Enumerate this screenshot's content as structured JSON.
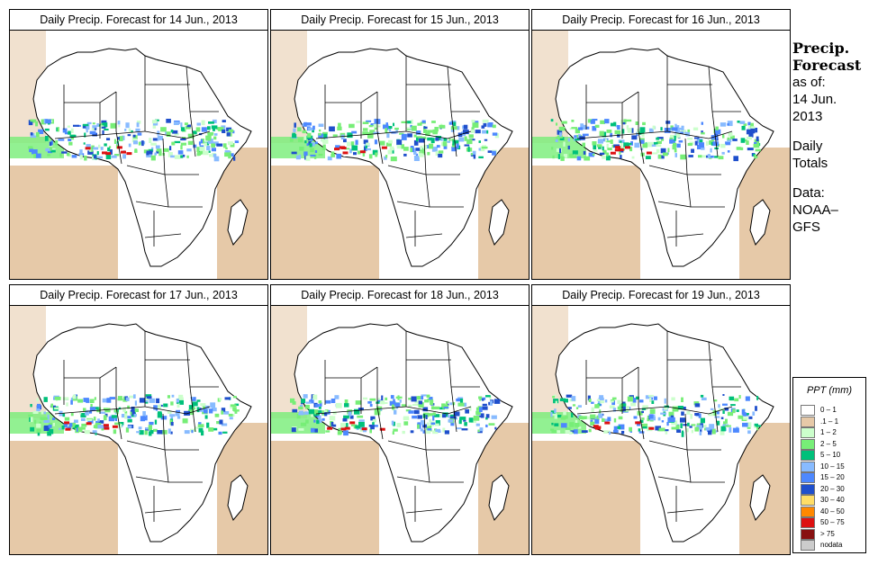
{
  "panels": [
    {
      "title": "Daily Precip. Forecast for  14 Jun., 2013"
    },
    {
      "title": "Daily Precip. Forecast for  15 Jun., 2013"
    },
    {
      "title": "Daily Precip. Forecast for  16 Jun., 2013"
    },
    {
      "title": "Daily Precip. Forecast for  17 Jun., 2013"
    },
    {
      "title": "Daily Precip. Forecast for  18 Jun., 2013"
    },
    {
      "title": "Daily Precip. Forecast for  19 Jun., 2013"
    }
  ],
  "sidebar": {
    "heading_line1": "Precip.",
    "heading_line2": "Forecast",
    "asof_label": "as of:",
    "asof_date1": "14 Jun.",
    "asof_date2": "2013",
    "totals1": "Daily",
    "totals2": "Totals",
    "data1": "Data:",
    "data2": "NOAA–",
    "data3": "GFS"
  },
  "legend": {
    "title": "PPT (mm)",
    "items": [
      {
        "label": "0 – 1",
        "color": "#ffffff"
      },
      {
        "label": ".1 – 1",
        "color": "#e6c9a8"
      },
      {
        "label": "1 – 2",
        "color": "#ccffcc"
      },
      {
        "label": "2 – 5",
        "color": "#77ee77"
      },
      {
        "label": "5 – 10",
        "color": "#00c07a"
      },
      {
        "label": "10 – 15",
        "color": "#88bbff"
      },
      {
        "label": "15 – 20",
        "color": "#4d88ff"
      },
      {
        "label": "20 – 30",
        "color": "#1f4fcc"
      },
      {
        "label": "30 – 40",
        "color": "#ffdd66"
      },
      {
        "label": "40 – 50",
        "color": "#ff8800"
      },
      {
        "label": "50 – 75",
        "color": "#dd1111"
      },
      {
        "label": "> 75",
        "color": "#881111"
      },
      {
        "label": "nodata",
        "color": "#cccccc"
      }
    ]
  }
}
